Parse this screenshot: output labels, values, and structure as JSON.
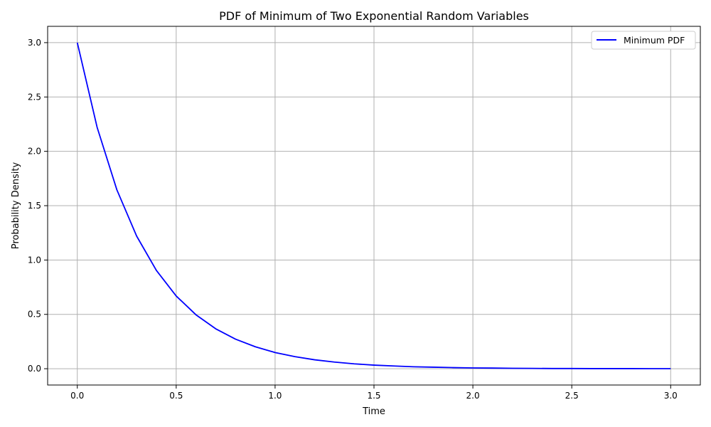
{
  "chart_data": {
    "type": "line",
    "title": "PDF of Minimum of Two Exponential Random Variables",
    "xlabel": "Time",
    "ylabel": "Probability Density",
    "xlim": [
      -0.15,
      3.15
    ],
    "ylim": [
      -0.15,
      3.15
    ],
    "x_ticks": [
      0.0,
      0.5,
      1.0,
      1.5,
      2.0,
      2.5,
      3.0
    ],
    "x_tick_labels": [
      "0.0",
      "0.5",
      "1.0",
      "1.5",
      "2.0",
      "2.5",
      "3.0"
    ],
    "y_ticks": [
      0.0,
      0.5,
      1.0,
      1.5,
      2.0,
      2.5,
      3.0
    ],
    "y_tick_labels": [
      "0.0",
      "0.5",
      "1.0",
      "1.5",
      "2.0",
      "2.5",
      "3.0"
    ],
    "grid": true,
    "legend_position": "upper-right",
    "series": [
      {
        "name": "Minimum PDF",
        "color": "#0000ff",
        "x": [
          0.0,
          0.1,
          0.2,
          0.3,
          0.4,
          0.5,
          0.6,
          0.7,
          0.8,
          0.9,
          1.0,
          1.1,
          1.2,
          1.3,
          1.4,
          1.5,
          1.6,
          1.7,
          1.8,
          1.9,
          2.0,
          2.1,
          2.2,
          2.3,
          2.4,
          2.5,
          2.6,
          2.7,
          2.8,
          2.9,
          3.0
        ],
        "y": [
          3.0,
          2.222,
          1.646,
          1.22,
          0.904,
          0.669,
          0.496,
          0.367,
          0.272,
          0.202,
          0.149,
          0.111,
          0.082,
          0.061,
          0.045,
          0.033,
          0.025,
          0.018,
          0.014,
          0.01,
          0.007,
          0.006,
          0.004,
          0.003,
          0.002,
          0.002,
          0.001,
          0.001,
          0.001,
          0.0005,
          0.0004
        ]
      }
    ]
  }
}
